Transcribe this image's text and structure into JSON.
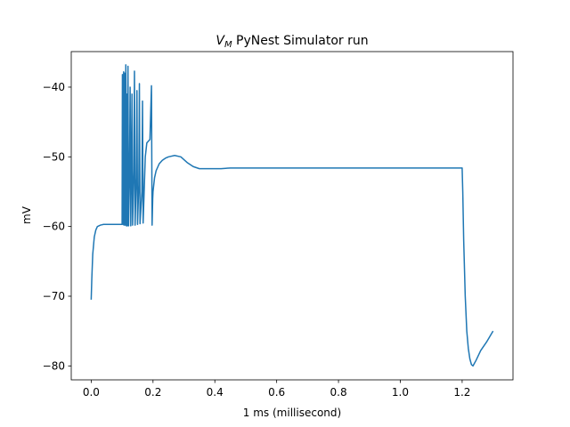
{
  "chart_data": {
    "type": "line",
    "title_main": "V",
    "title_sub": "M",
    "title_rest": " PyNest Simulator run",
    "xlabel": "1 ms (millisecond)",
    "ylabel": "mV",
    "xlim": [
      -0.0645,
      1.3645
    ],
    "ylim": [
      -82.0,
      -34.9
    ],
    "xticks": [
      0.0,
      0.2,
      0.4,
      0.6,
      0.8,
      1.0,
      1.2
    ],
    "xtick_labels": [
      "0.0",
      "0.2",
      "0.4",
      "0.6",
      "0.8",
      "1.0",
      "1.2"
    ],
    "yticks": [
      -80,
      -70,
      -60,
      -50,
      -40
    ],
    "ytick_labels": [
      "−80",
      "−70",
      "−60",
      "−50",
      "−40"
    ],
    "grid": false,
    "color": "#1f77b4",
    "series": [
      {
        "x": [
          0.0,
          0.002,
          0.005,
          0.01,
          0.015,
          0.02,
          0.03,
          0.04,
          0.05,
          0.06,
          0.08,
          0.1,
          0.101,
          0.103,
          0.105,
          0.106,
          0.108,
          0.11,
          0.112,
          0.114,
          0.116,
          0.117,
          0.119,
          0.121,
          0.124,
          0.126,
          0.128,
          0.13,
          0.132,
          0.134,
          0.138,
          0.14,
          0.142,
          0.146,
          0.148,
          0.15,
          0.154,
          0.156,
          0.158,
          0.164,
          0.166,
          0.168,
          0.175,
          0.18,
          0.19,
          0.195,
          0.197,
          0.199,
          0.2,
          0.205,
          0.21,
          0.22,
          0.23,
          0.24,
          0.25,
          0.27,
          0.29,
          0.31,
          0.33,
          0.35,
          0.37,
          0.39,
          0.42,
          0.45,
          0.5,
          0.6,
          0.8,
          1.0,
          1.19,
          1.199,
          1.2,
          1.202,
          1.205,
          1.21,
          1.215,
          1.22,
          1.225,
          1.23,
          1.235,
          1.245,
          1.26,
          1.28,
          1.3
        ],
        "y": [
          -70.5,
          -67.5,
          -64.0,
          -61.5,
          -60.5,
          -60.0,
          -59.8,
          -59.7,
          -59.7,
          -59.7,
          -59.7,
          -59.7,
          -38.2,
          -59.7,
          -37.8,
          -59.8,
          -38.0,
          -59.8,
          -36.8,
          -59.9,
          -41.0,
          -59.9,
          -37.0,
          -59.9,
          -52.0,
          -40.0,
          -59.9,
          -52.0,
          -41.0,
          -59.8,
          -52.0,
          -37.7,
          -59.8,
          -53.0,
          -40.5,
          -59.7,
          -54.0,
          -39.5,
          -59.6,
          -55.0,
          -42.0,
          -59.5,
          -50.0,
          -48.0,
          -47.5,
          -39.8,
          -59.8,
          -56.0,
          -55.0,
          -53.0,
          -52.0,
          -51.0,
          -50.5,
          -50.2,
          -50.0,
          -49.8,
          -50.0,
          -50.8,
          -51.4,
          -51.7,
          -51.7,
          -51.7,
          -51.7,
          -51.6,
          -51.6,
          -51.6,
          -51.6,
          -51.6,
          -51.6,
          -51.6,
          -51.6,
          -55.0,
          -62.0,
          -70.0,
          -75.0,
          -77.5,
          -79.0,
          -79.8,
          -80.0,
          -79.2,
          -77.8,
          -76.5,
          -75.0
        ]
      }
    ]
  }
}
